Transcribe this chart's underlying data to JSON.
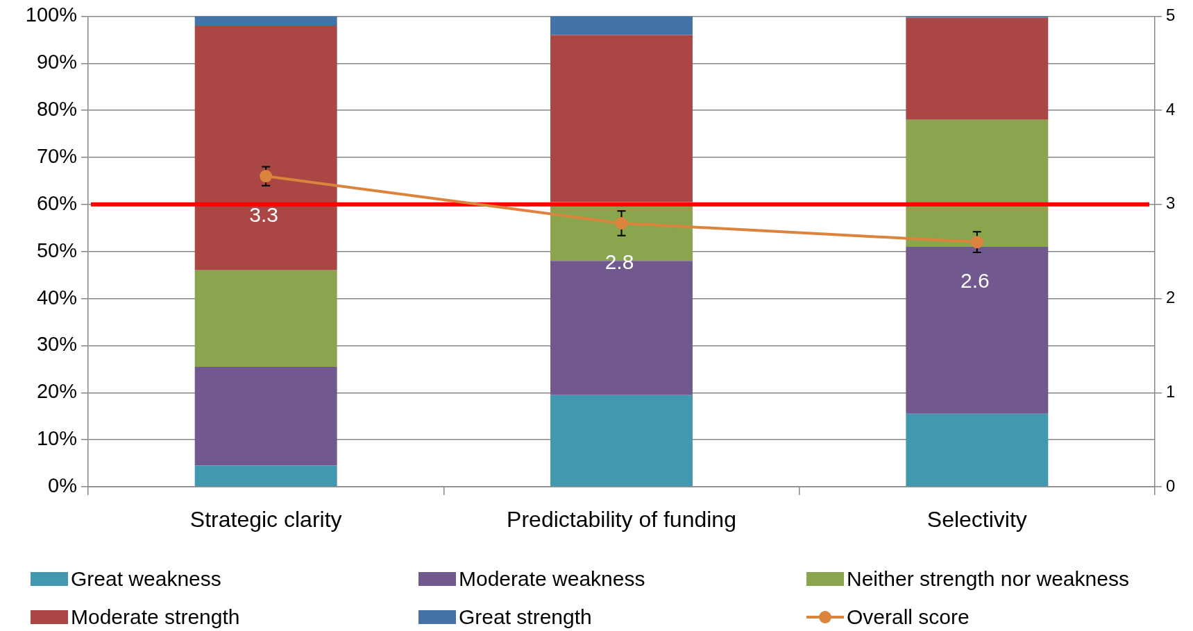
{
  "chart_data": {
    "type": "bar",
    "stacked": true,
    "categories": [
      "Strategic clarity",
      "Predictability of funding",
      "Selectivity"
    ],
    "series": [
      {
        "name": "Great weakness",
        "color": "#4198af",
        "values": [
          4.5,
          19.5,
          15.5
        ]
      },
      {
        "name": "Moderate weakness",
        "color": "#71588f",
        "values": [
          21,
          28.5,
          35.5
        ]
      },
      {
        "name": "Neither strength nor weakness",
        "color": "#89a54e",
        "values": [
          20.5,
          12.5,
          27
        ]
      },
      {
        "name": "Moderate strength",
        "color": "#aa4643",
        "values": [
          52,
          35.5,
          21.7
        ]
      },
      {
        "name": "Great strength",
        "color": "#4572a7",
        "values": [
          2,
          4,
          0.3
        ]
      },
      {
        "name": "Overall score",
        "type": "line",
        "axis": "y2",
        "color": "#db843d",
        "values": [
          3.3,
          2.8,
          2.6
        ],
        "errors": [
          0.1,
          0.13,
          0.11
        ],
        "value_labels": [
          "3.3",
          "2.8",
          "2.6"
        ]
      }
    ],
    "ylim": [
      0,
      100
    ],
    "yticks": [
      {
        "value": 0,
        "label": "0%"
      },
      {
        "value": 10,
        "label": "10%"
      },
      {
        "value": 20,
        "label": "20%"
      },
      {
        "value": 30,
        "label": "30%"
      },
      {
        "value": 40,
        "label": "40%"
      },
      {
        "value": 50,
        "label": "50%"
      },
      {
        "value": 60,
        "label": "60%"
      },
      {
        "value": 70,
        "label": "70%"
      },
      {
        "value": 80,
        "label": "80%"
      },
      {
        "value": 90,
        "label": "90%"
      },
      {
        "value": 100,
        "label": "100%"
      }
    ],
    "y2lim": [
      0,
      5
    ],
    "y2ticks": [
      0,
      1,
      2,
      3,
      4,
      5
    ],
    "ref_lines": [
      {
        "axis": "y",
        "value": 60,
        "color": "#ff0000"
      }
    ],
    "grid": "y",
    "legend": "bottom",
    "marker": "circle"
  }
}
